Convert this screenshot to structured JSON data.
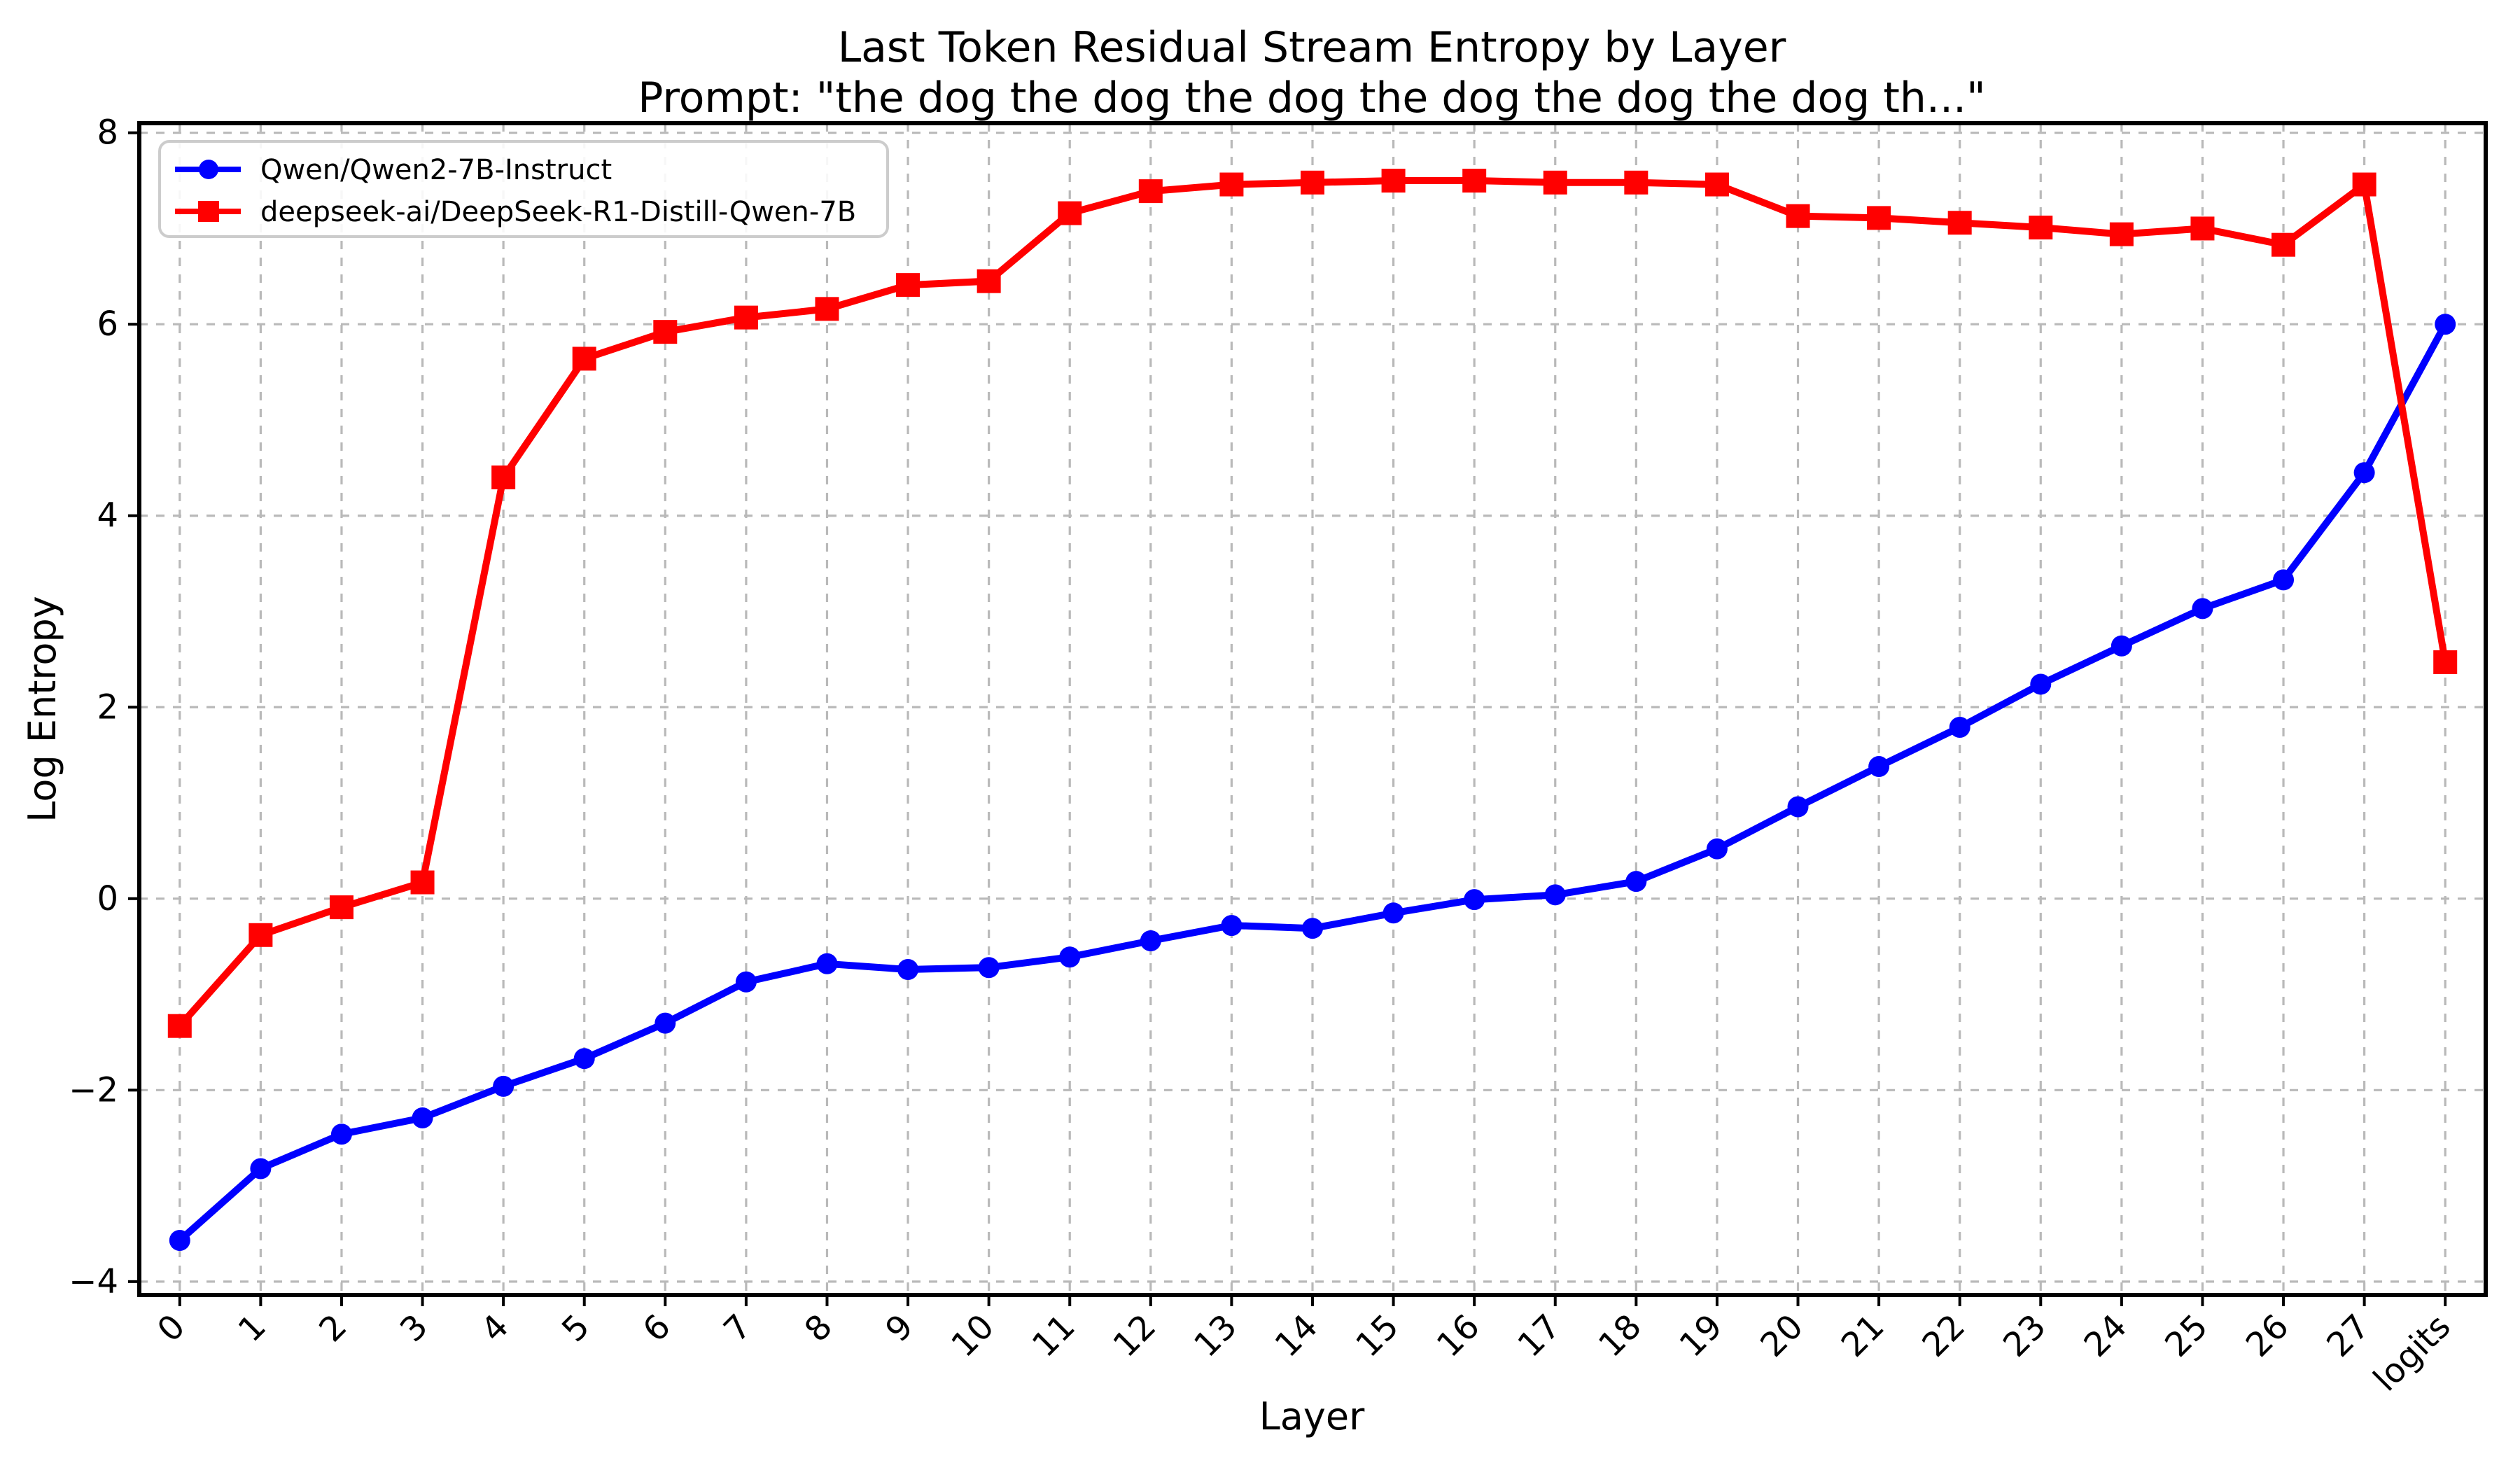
{
  "chart_data": {
    "type": "line",
    "title": "Last Token Residual Stream Entropy by Layer",
    "subtitle": "Prompt: \"the dog the dog the dog the dog the dog the dog th...\"",
    "xlabel": "Layer",
    "ylabel": "Log Entropy",
    "categories": [
      "0",
      "1",
      "2",
      "3",
      "4",
      "5",
      "6",
      "7",
      "8",
      "9",
      "10",
      "11",
      "12",
      "13",
      "14",
      "15",
      "16",
      "17",
      "18",
      "19",
      "20",
      "21",
      "22",
      "23",
      "24",
      "25",
      "26",
      "27",
      "logits"
    ],
    "yticks": [
      "8",
      "6",
      "4",
      "2",
      "0",
      "−2",
      "−4"
    ],
    "ytick_values": [
      8,
      6,
      4,
      2,
      0,
      -2,
      -4
    ],
    "ylim": [
      -4.14,
      8.1
    ],
    "grid": true,
    "grid_style": "dashed",
    "legend_position": "upper left",
    "series": [
      {
        "name": "Qwen/Qwen2-7B-Instruct",
        "color": "#0000ff",
        "marker": "circle",
        "values": [
          -3.57,
          -2.82,
          -2.46,
          -2.29,
          -1.96,
          -1.67,
          -1.3,
          -0.87,
          -0.68,
          -0.74,
          -0.72,
          -0.61,
          -0.44,
          -0.28,
          -0.31,
          -0.15,
          -0.01,
          0.04,
          0.18,
          0.52,
          0.96,
          1.38,
          1.79,
          2.24,
          2.64,
          3.03,
          3.33,
          4.45,
          6.0
        ]
      },
      {
        "name": "deepseek-ai/DeepSeek-R1-Distill-Qwen-7B",
        "color": "#ff0000",
        "marker": "square",
        "values": [
          -1.33,
          -0.38,
          -0.09,
          0.17,
          4.4,
          5.64,
          5.92,
          6.07,
          6.16,
          6.41,
          6.45,
          7.16,
          7.39,
          7.46,
          7.48,
          7.5,
          7.5,
          7.48,
          7.48,
          7.46,
          7.13,
          7.11,
          7.06,
          7.01,
          6.94,
          7.0,
          6.83,
          7.46,
          2.47
        ]
      }
    ]
  },
  "colors": {
    "background": "#ffffff",
    "spine": "#000000",
    "grid": "#b9b9b9",
    "blue_series": "#0000ff",
    "red_series": "#ff0000",
    "legend_border": "#cccccc"
  }
}
